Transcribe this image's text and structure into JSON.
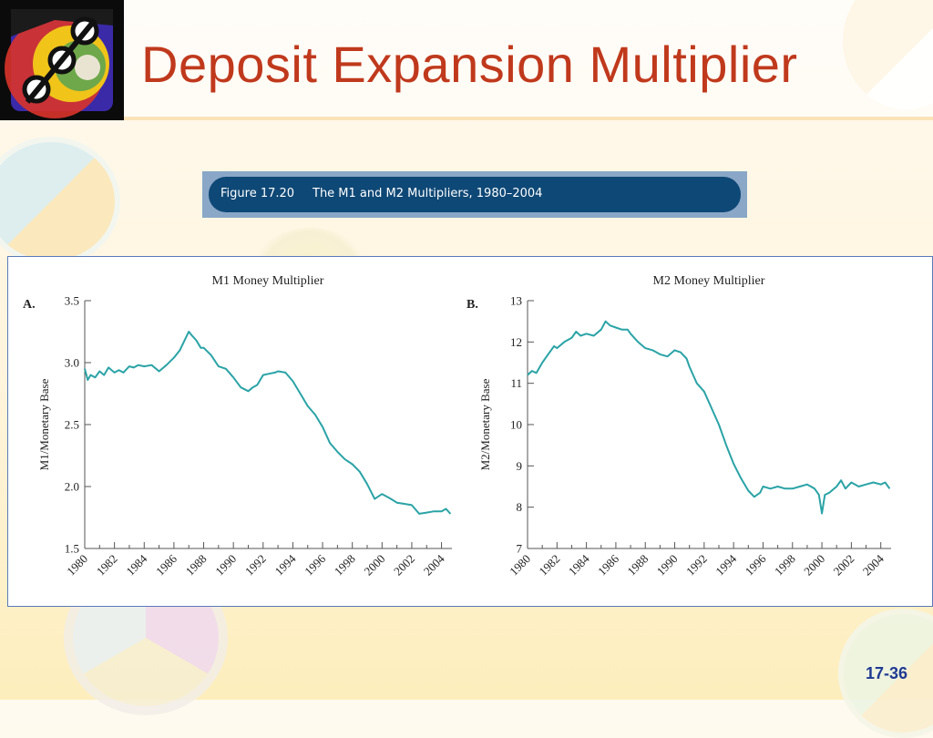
{
  "slide": {
    "title": "Deposit Expansion Multiplier",
    "figure_label": "Figure 17.20",
    "figure_caption": "The M1 and M2 Multipliers, 1980–2004",
    "slide_number": "17-36"
  },
  "colors": {
    "title": "#c0391c",
    "line": "#2aa3a6",
    "banner": "#0e4876",
    "slide_number": "#1f3a93"
  },
  "chart_data": [
    {
      "type": "line",
      "panel_label": "A.",
      "title": "M1 Money Multiplier",
      "ylabel": "M1/Monetary Base",
      "xlabel": "",
      "xlim": [
        1980,
        2004.7
      ],
      "ylim": [
        1.5,
        3.5
      ],
      "x_ticks": [
        "1980",
        "1982",
        "1984",
        "1986",
        "1988",
        "1990",
        "1992",
        "1994",
        "1996",
        "1998",
        "2000",
        "2002",
        "2004"
      ],
      "y_ticks": [
        "1.5",
        "2.0",
        "2.5",
        "3.0",
        "3.5"
      ],
      "grid": false,
      "series": [
        {
          "x": [
            1980,
            1980.2,
            1980.4,
            1980.7,
            1981,
            1981.3,
            1981.6,
            1982,
            1982.3,
            1982.6,
            1983,
            1983.3,
            1983.6,
            1984,
            1984.5,
            1985,
            1985.5,
            1986,
            1986.4,
            1986.8,
            1987,
            1987.2,
            1987.5,
            1987.8,
            1988,
            1988.5,
            1989,
            1989.5,
            1990,
            1990.5,
            1991,
            1991.3,
            1991.6,
            1992,
            1992.4,
            1992.8,
            1993,
            1993.5,
            1994,
            1994.5,
            1995,
            1995.5,
            1996,
            1996.5,
            1997,
            1997.5,
            1998,
            1998.5,
            1999,
            1999.5,
            2000,
            2000.3,
            2000.6,
            2001,
            2001.5,
            2002,
            2002.5,
            2003,
            2003.5,
            2004,
            2004.3,
            2004.6
          ],
          "values": [
            2.95,
            2.86,
            2.9,
            2.88,
            2.93,
            2.9,
            2.96,
            2.92,
            2.94,
            2.92,
            2.97,
            2.96,
            2.98,
            2.97,
            2.98,
            2.93,
            2.98,
            3.04,
            3.1,
            3.2,
            3.25,
            3.22,
            3.18,
            3.12,
            3.12,
            3.06,
            2.97,
            2.95,
            2.88,
            2.8,
            2.77,
            2.8,
            2.82,
            2.9,
            2.91,
            2.92,
            2.93,
            2.92,
            2.85,
            2.75,
            2.65,
            2.58,
            2.48,
            2.35,
            2.28,
            2.22,
            2.18,
            2.12,
            2.02,
            1.9,
            1.94,
            1.92,
            1.9,
            1.87,
            1.86,
            1.85,
            1.78,
            1.79,
            1.8,
            1.8,
            1.82,
            1.78
          ]
        }
      ]
    },
    {
      "type": "line",
      "panel_label": "B.",
      "title": "M2 Money Multiplier",
      "ylabel": "M2/Monetary Base",
      "xlabel": "",
      "xlim": [
        1980,
        2004.7
      ],
      "ylim": [
        7,
        13
      ],
      "x_ticks": [
        "1980",
        "1982",
        "1984",
        "1986",
        "1988",
        "1990",
        "1992",
        "1994",
        "1996",
        "1998",
        "2000",
        "2002",
        "2004"
      ],
      "y_ticks": [
        "7",
        "8",
        "9",
        "10",
        "11",
        "12",
        "13"
      ],
      "grid": false,
      "series": [
        {
          "x": [
            1980,
            1980.3,
            1980.6,
            1981,
            1981.4,
            1981.8,
            1982,
            1982.5,
            1983,
            1983.3,
            1983.6,
            1984,
            1984.5,
            1985,
            1985.3,
            1985.6,
            1986,
            1986.4,
            1986.8,
            1987,
            1987.5,
            1988,
            1988.5,
            1989,
            1989.5,
            1990,
            1990.4,
            1990.8,
            1991,
            1991.5,
            1992,
            1992.5,
            1993,
            1993.5,
            1994,
            1994.5,
            1995,
            1995.4,
            1995.8,
            1996,
            1996.5,
            1997,
            1997.5,
            1998,
            1998.5,
            1999,
            1999.5,
            1999.8,
            2000,
            2000.2,
            2000.5,
            2001,
            2001.3,
            2001.6,
            2002,
            2002.5,
            2003,
            2003.5,
            2004,
            2004.3,
            2004.6
          ],
          "values": [
            11.2,
            11.3,
            11.25,
            11.5,
            11.7,
            11.9,
            11.85,
            12.0,
            12.1,
            12.25,
            12.15,
            12.2,
            12.15,
            12.3,
            12.5,
            12.4,
            12.35,
            12.3,
            12.3,
            12.2,
            12.0,
            11.85,
            11.8,
            11.7,
            11.65,
            11.8,
            11.75,
            11.6,
            11.4,
            11.0,
            10.8,
            10.4,
            10.0,
            9.5,
            9.05,
            8.7,
            8.4,
            8.25,
            8.35,
            8.5,
            8.45,
            8.5,
            8.45,
            8.45,
            8.5,
            8.55,
            8.45,
            8.3,
            7.85,
            8.3,
            8.35,
            8.5,
            8.65,
            8.45,
            8.6,
            8.5,
            8.55,
            8.6,
            8.55,
            8.6,
            8.45
          ]
        }
      ]
    }
  ]
}
